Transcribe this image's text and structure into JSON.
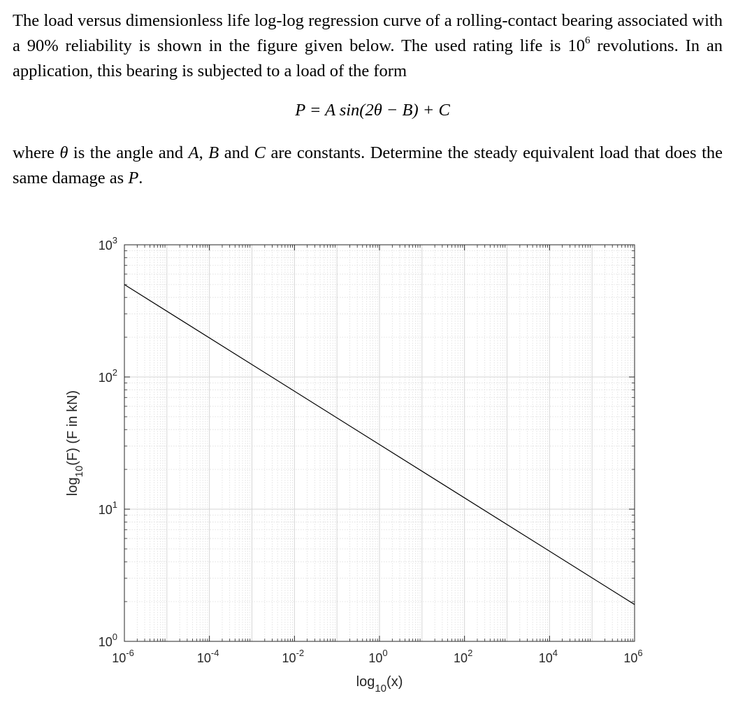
{
  "problem": {
    "para1_a": "The load versus dimensionless life log-log regression curve of a rolling-contact bearing associated with a 90% reliability is shown in the figure given below. The used rating life is 10",
    "para1_sup": "6",
    "para1_b": " revolutions. In an application, this bearing is subjected to a load of the form",
    "equation": "P = A sin(2θ − B) + C",
    "para2_a": "where ",
    "theta": "θ",
    "para2_b": " is the angle and ",
    "var_A": "A",
    "comma": ", ",
    "var_B": "B",
    "and": " and ",
    "var_C": "C",
    "para2_c": " are constants. Determine the steady equivalent load that does the same damage as ",
    "var_P": "P",
    "period": "."
  },
  "chart_data": {
    "type": "line",
    "x_scale": "log",
    "y_scale": "log",
    "xlim": [
      1e-06,
      1000000
    ],
    "ylim": [
      1,
      1000
    ],
    "xlabel": "log10(x)",
    "ylabel": "log10(F) (F in kN)",
    "x_ticks": [
      {
        "base": "10",
        "exp": "-6"
      },
      {
        "base": "10",
        "exp": "-4"
      },
      {
        "base": "10",
        "exp": "-2"
      },
      {
        "base": "10",
        "exp": "0"
      },
      {
        "base": "10",
        "exp": "2"
      },
      {
        "base": "10",
        "exp": "4"
      },
      {
        "base": "10",
        "exp": "6"
      }
    ],
    "y_ticks": [
      {
        "base": "10",
        "exp": "0"
      },
      {
        "base": "10",
        "exp": "1"
      },
      {
        "base": "10",
        "exp": "2"
      },
      {
        "base": "10",
        "exp": "3"
      }
    ],
    "grid": true,
    "minor_grid": true,
    "series": [
      {
        "points": [
          [
            1e-06,
            500
          ],
          [
            1000000,
            1.9
          ]
        ]
      }
    ]
  }
}
